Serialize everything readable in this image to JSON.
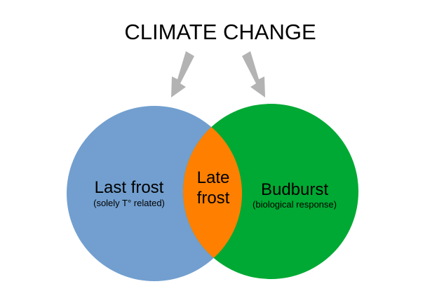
{
  "title": "CLIMATE CHANGE",
  "left_set": {
    "label": "Last frost",
    "sublabel": "(solely T° related)",
    "color": "#729FCF"
  },
  "right_set": {
    "label": "Budburst",
    "sublabel": "(biological response)",
    "color": "#00A933"
  },
  "overlap": {
    "label_line1": "Late",
    "label_line2": "frost",
    "color": "#FF8000"
  },
  "arrow_color": "#B3B3B3",
  "icons": {
    "left_arrow": "arrow-down-right-icon",
    "right_arrow": "arrow-down-left-icon"
  }
}
